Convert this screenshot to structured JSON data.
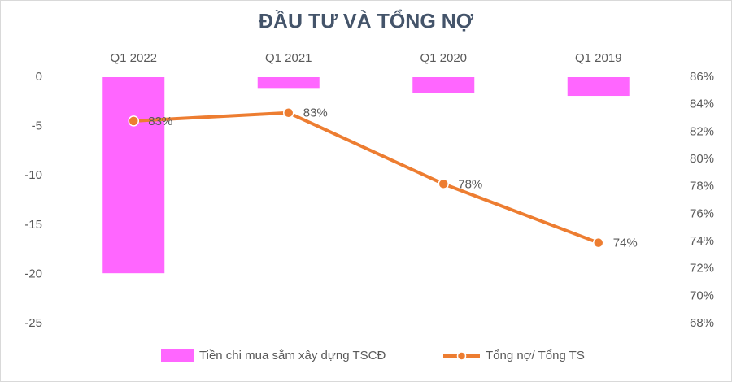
{
  "chart_data": {
    "type": "combo",
    "title": "ĐẦU TƯ VÀ TỔNG NỢ",
    "categories": [
      "Q1 2022",
      "Q1 2021",
      "Q1 2020",
      "Q1 2019"
    ],
    "series": [
      {
        "name": "Tiền chi mua sắm xây dựng TSCĐ",
        "type": "bar",
        "color": "#ff66ff",
        "values": [
          -19.9,
          -1.1,
          -1.65,
          -1.9
        ]
      },
      {
        "name": "Tổng nợ/ Tổng TS",
        "type": "line",
        "axis": "y2",
        "color": "#ed7d31",
        "values": [
          82.8,
          83.4,
          78.2,
          73.9
        ],
        "value_labels": [
          "83%",
          "83%",
          "78%",
          "74%"
        ]
      }
    ],
    "ylim": [
      -25,
      0
    ],
    "yticks": [
      0,
      -5,
      -10,
      -15,
      -20,
      -25
    ],
    "y2lim": [
      68,
      86
    ],
    "y2ticks": [
      {
        "value": 86,
        "label": "86%"
      },
      {
        "value": 84,
        "label": "84%"
      },
      {
        "value": 82,
        "label": "82%"
      },
      {
        "value": 80,
        "label": "80%"
      },
      {
        "value": 78,
        "label": "78%"
      },
      {
        "value": 76,
        "label": "76%"
      },
      {
        "value": 74,
        "label": "74%"
      },
      {
        "value": 72,
        "label": "72%"
      },
      {
        "value": 70,
        "label": "70%"
      },
      {
        "value": 68,
        "label": "68%"
      }
    ],
    "grid": false,
    "legend": "bottom"
  }
}
